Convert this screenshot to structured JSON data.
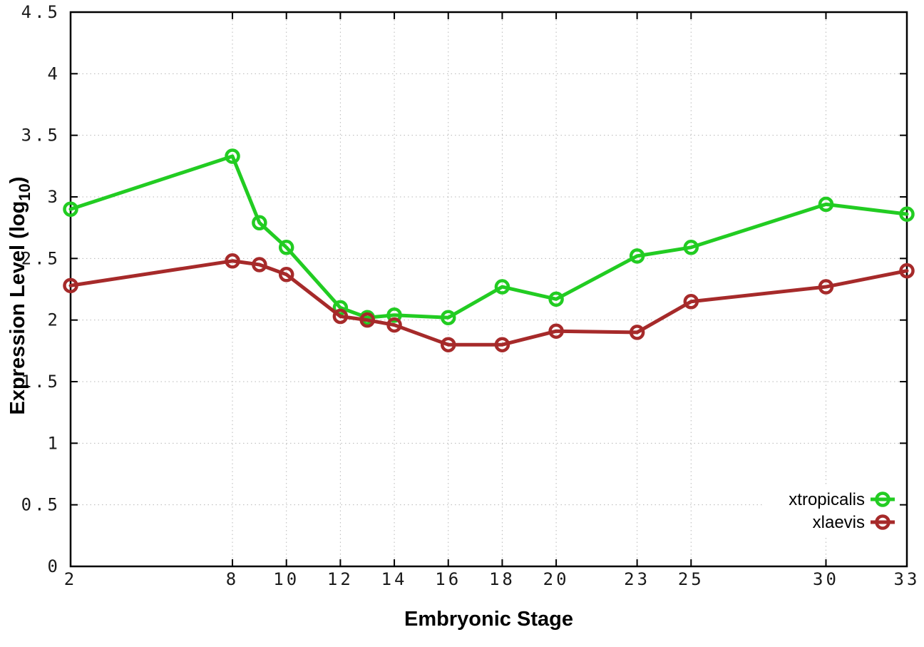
{
  "page": {
    "background": "#ffffff"
  },
  "chart_data": {
    "type": "line",
    "title": "",
    "xlabel": "Embryonic Stage",
    "ylabel": "Expression Level (log10)",
    "ylabel_parts": {
      "prefix": "Expression Level (log",
      "subscript": "10",
      "suffix": ")"
    },
    "x": [
      2,
      8,
      9,
      10,
      12,
      13,
      14,
      16,
      18,
      20,
      23,
      25,
      30,
      33
    ],
    "series": [
      {
        "name": "xtropicalis",
        "color": "#22CC22",
        "values": [
          2.9,
          3.33,
          2.79,
          2.59,
          2.1,
          2.02,
          2.04,
          2.02,
          2.27,
          2.17,
          2.52,
          2.59,
          2.94,
          2.86
        ]
      },
      {
        "name": "xlaevis",
        "color": "#A62A2A",
        "values": [
          2.28,
          2.48,
          2.45,
          2.37,
          2.03,
          2.0,
          1.96,
          1.8,
          1.8,
          1.91,
          1.9,
          2.15,
          2.27,
          2.4
        ]
      }
    ],
    "xlim": [
      2,
      33
    ],
    "ylim": [
      0,
      4.5
    ],
    "xticks": [
      2,
      8,
      10,
      12,
      14,
      16,
      18,
      20,
      23,
      25,
      30,
      33
    ],
    "yticks": [
      0,
      0.5,
      1,
      1.5,
      2,
      2.5,
      3,
      3.5,
      4,
      4.5
    ],
    "grid": true,
    "grid_color": "#b8b8b8",
    "border_color": "#000000",
    "marker": "open-circle",
    "legend_position": "bottom-right-inside",
    "legend_order": [
      "xtropicalis",
      "xlaevis"
    ]
  }
}
